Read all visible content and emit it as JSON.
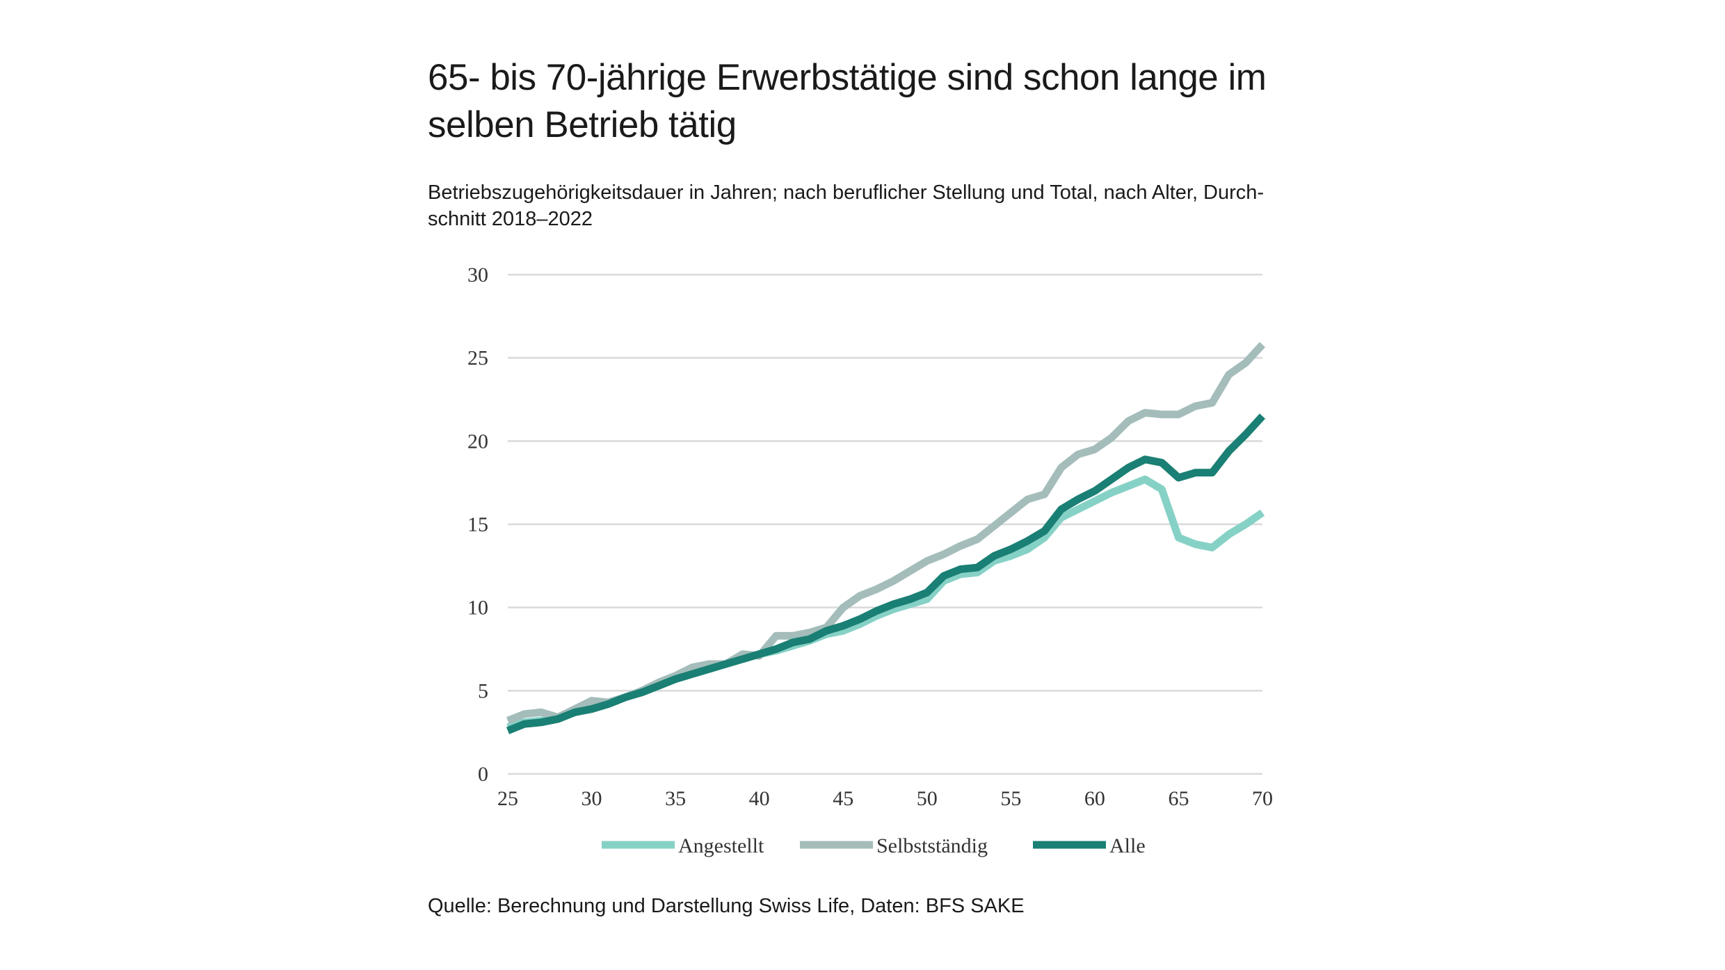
{
  "title_line1": "65- bis 70-jährige Erwerbstätige sind schon lange im",
  "title_line2": "selben Betrieb tätig",
  "subtitle_line1": "Betriebszugehörigkeitsdauer in Jahren; nach beruflicher Stellung und Total, nach Alter, Durch-",
  "subtitle_line2": "schnitt 2018–2022",
  "source": "Quelle: Berechnung und Darstellung Swiss Life, Daten: BFS SAKE",
  "colors": {
    "angestellt": "#86d1c6",
    "selbststaendig": "#a4bdbb",
    "alle": "#1a7f74",
    "grid": "#d9d9d9"
  },
  "chart_data": {
    "type": "line",
    "title": "65- bis 70-jährige Erwerbstätige sind schon lange im selben Betrieb tätig",
    "xlabel": "",
    "ylabel": "",
    "xlim": [
      25,
      70
    ],
    "ylim": [
      0,
      30
    ],
    "x_ticks": [
      25,
      30,
      35,
      40,
      45,
      50,
      55,
      60,
      65,
      70
    ],
    "y_ticks": [
      0,
      5,
      10,
      15,
      20,
      25,
      30
    ],
    "grid": true,
    "legend_position": "bottom",
    "x": [
      25,
      26,
      27,
      28,
      29,
      30,
      31,
      32,
      33,
      34,
      35,
      36,
      37,
      38,
      39,
      40,
      41,
      42,
      43,
      44,
      45,
      46,
      47,
      48,
      49,
      50,
      51,
      52,
      53,
      54,
      55,
      56,
      57,
      58,
      59,
      60,
      61,
      62,
      63,
      64,
      65,
      66,
      67,
      68,
      69,
      70
    ],
    "series": [
      {
        "name": "Angestellt",
        "color": "#86d1c6",
        "values": [
          2.8,
          3.1,
          3.2,
          3.3,
          3.8,
          4.0,
          4.3,
          4.6,
          5.0,
          5.3,
          5.7,
          6.0,
          6.3,
          6.6,
          6.9,
          7.2,
          7.4,
          7.7,
          8.0,
          8.4,
          8.6,
          9.0,
          9.5,
          9.9,
          10.2,
          10.5,
          11.6,
          12.0,
          12.1,
          12.8,
          13.1,
          13.5,
          14.2,
          15.4,
          15.9,
          16.4,
          16.9,
          17.3,
          17.7,
          17.1,
          14.2,
          13.8,
          13.6,
          14.4,
          15.0,
          15.7
        ]
      },
      {
        "name": "Selbstständig",
        "color": "#a4bdbb",
        "values": [
          3.2,
          3.6,
          3.7,
          3.4,
          3.9,
          4.4,
          4.3,
          4.6,
          5.0,
          5.5,
          5.9,
          6.4,
          6.6,
          6.6,
          7.2,
          7.1,
          8.3,
          8.3,
          8.5,
          8.8,
          10.0,
          10.7,
          11.1,
          11.6,
          12.2,
          12.8,
          13.2,
          13.7,
          14.1,
          14.9,
          15.7,
          16.5,
          16.8,
          18.4,
          19.2,
          19.5,
          20.2,
          21.2,
          21.7,
          21.6,
          21.6,
          22.1,
          22.3,
          24.0,
          24.7,
          25.8
        ]
      },
      {
        "name": "Alle",
        "color": "#1a7f74",
        "values": [
          2.6,
          3.0,
          3.1,
          3.3,
          3.7,
          3.9,
          4.2,
          4.6,
          4.9,
          5.3,
          5.7,
          6.0,
          6.3,
          6.6,
          6.9,
          7.2,
          7.5,
          7.9,
          8.1,
          8.6,
          8.9,
          9.3,
          9.8,
          10.2,
          10.5,
          10.9,
          11.9,
          12.3,
          12.4,
          13.1,
          13.5,
          14.0,
          14.6,
          15.9,
          16.5,
          17.0,
          17.7,
          18.4,
          18.9,
          18.7,
          17.8,
          18.1,
          18.1,
          19.4,
          20.4,
          21.5
        ]
      }
    ]
  }
}
